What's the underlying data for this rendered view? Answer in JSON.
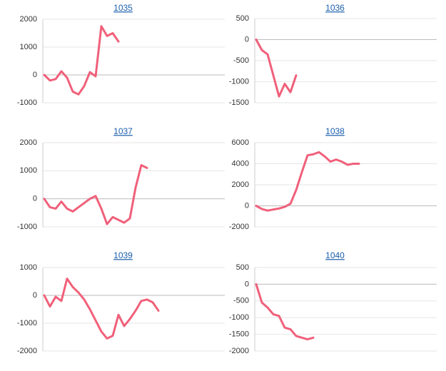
{
  "chart_data": [
    {
      "type": "line",
      "title": "1035",
      "color": "#f0607a",
      "values": [
        0,
        -200,
        -150,
        130,
        -100,
        -600,
        -700,
        -400,
        100,
        -50,
        1750,
        1400,
        1500,
        1200
      ],
      "ylim": [
        -1000,
        2000
      ],
      "yticks": [
        -1000,
        0,
        1000,
        2000
      ],
      "grid": true
    },
    {
      "type": "line",
      "title": "1036",
      "color": "#f0607a",
      "values": [
        0,
        -250,
        -350,
        -850,
        -1350,
        -1050,
        -1250,
        -850
      ],
      "ylim": [
        -1500,
        500
      ],
      "yticks": [
        -1500,
        -1000,
        -500,
        0,
        500
      ],
      "grid": true
    },
    {
      "type": "line",
      "title": "1037",
      "color": "#f0607a",
      "values": [
        0,
        -300,
        -350,
        -100,
        -350,
        -450,
        -300,
        -150,
        0,
        100,
        -350,
        -900,
        -650,
        -750,
        -850,
        -700,
        400,
        1200,
        1100
      ],
      "ylim": [
        -1000,
        2000
      ],
      "yticks": [
        -1000,
        0,
        1000,
        2000
      ],
      "grid": true
    },
    {
      "type": "line",
      "title": "1038",
      "color": "#f0607a",
      "values": [
        0,
        -300,
        -450,
        -350,
        -250,
        -100,
        200,
        1500,
        3200,
        4800,
        4900,
        5100,
        4700,
        4200,
        4400,
        4200,
        3900,
        4000,
        4000
      ],
      "ylim": [
        -2000,
        6000
      ],
      "yticks": [
        -2000,
        0,
        2000,
        4000,
        6000
      ],
      "grid": true
    },
    {
      "type": "line",
      "title": "1039",
      "color": "#f0607a",
      "values": [
        0,
        -400,
        -50,
        -200,
        600,
        300,
        100,
        -150,
        -500,
        -900,
        -1300,
        -1550,
        -1450,
        -700,
        -1100,
        -850,
        -550,
        -200,
        -150,
        -250,
        -550
      ],
      "ylim": [
        -2000,
        1000
      ],
      "yticks": [
        -2000,
        -1000,
        0,
        1000
      ],
      "grid": true
    },
    {
      "type": "line",
      "title": "1040",
      "color": "#f0607a",
      "values": [
        0,
        -550,
        -700,
        -900,
        -950,
        -1300,
        -1350,
        -1550,
        -1600,
        -1650,
        -1600
      ],
      "ylim": [
        -2000,
        500
      ],
      "yticks": [
        -2000,
        -1500,
        -1000,
        -500,
        0,
        500
      ],
      "grid": true
    }
  ]
}
